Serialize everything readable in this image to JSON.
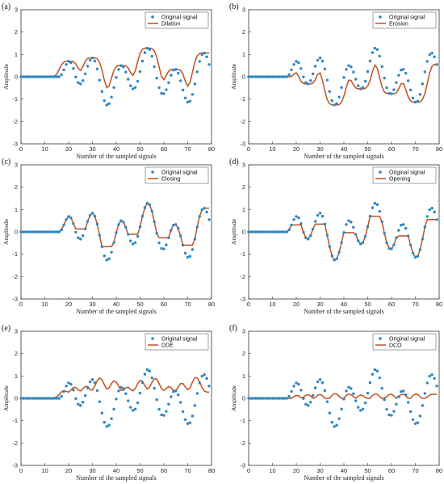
{
  "colors": {
    "original": "#2E86C1",
    "processed": "#C0501E",
    "axis": "#333333"
  },
  "chart_data": [
    {
      "type": "line",
      "panel_label": "(a)",
      "xlabel": "Number of the sampled signals",
      "ylabel": "Amplitude",
      "xlim": [
        0,
        80
      ],
      "ylim": [
        -3,
        3
      ],
      "xticks": [
        0,
        10,
        20,
        30,
        40,
        50,
        60,
        70,
        80
      ],
      "yticks": [
        -3,
        -2,
        -1,
        0,
        1,
        2,
        3
      ],
      "legend": "top-right",
      "series": [
        {
          "name": "Original signal",
          "style": "markers",
          "x": [],
          "values": []
        },
        {
          "name": "Dilation",
          "style": "line",
          "x": [],
          "values": []
        }
      ]
    },
    {
      "type": "line",
      "panel_label": "(b)",
      "xlabel": "Number of the sampled signals",
      "ylabel": "Amplitude",
      "xlim": [
        0,
        80
      ],
      "ylim": [
        -3,
        3
      ],
      "xticks": [
        0,
        10,
        20,
        30,
        40,
        50,
        60,
        70,
        80
      ],
      "yticks": [
        -3,
        -2,
        -1,
        0,
        1,
        2,
        3
      ],
      "legend": "top-right",
      "series": [
        {
          "name": "Original signal",
          "style": "markers",
          "x": [],
          "values": []
        },
        {
          "name": "Erosion",
          "style": "line",
          "x": [],
          "values": []
        }
      ]
    },
    {
      "type": "line",
      "panel_label": "(c)",
      "xlabel": "Number of the sampled signals",
      "ylabel": "Amplitude",
      "xlim": [
        0,
        80
      ],
      "ylim": [
        -3,
        3
      ],
      "xticks": [
        0,
        10,
        20,
        30,
        40,
        50,
        60,
        70,
        80
      ],
      "yticks": [
        -3,
        -2,
        -1,
        0,
        1,
        2,
        3
      ],
      "legend": "top-right",
      "series": [
        {
          "name": "Original signal",
          "style": "markers",
          "x": [],
          "values": []
        },
        {
          "name": "Closing",
          "style": "line",
          "x": [],
          "values": []
        }
      ]
    },
    {
      "type": "line",
      "panel_label": "(d)",
      "xlabel": "Number of the sampled signals",
      "ylabel": "Amplitude",
      "xlim": [
        0,
        80
      ],
      "ylim": [
        -3,
        3
      ],
      "xticks": [
        0,
        10,
        20,
        30,
        40,
        50,
        60,
        70,
        80
      ],
      "yticks": [
        -3,
        -2,
        -1,
        0,
        1,
        2,
        3
      ],
      "legend": "top-right",
      "series": [
        {
          "name": "Original signal",
          "style": "markers",
          "x": [],
          "values": []
        },
        {
          "name": "Opening",
          "style": "line",
          "x": [],
          "values": []
        }
      ]
    },
    {
      "type": "line",
      "panel_label": "(e)",
      "xlabel": "Number of the sampled signals",
      "ylabel": "Amplitude",
      "xlim": [
        0,
        80
      ],
      "ylim": [
        -3,
        3
      ],
      "xticks": [
        0,
        10,
        20,
        30,
        40,
        50,
        60,
        70,
        80
      ],
      "yticks": [
        -3,
        -2,
        -1,
        0,
        1,
        2,
        3
      ],
      "legend": "top-right",
      "series": [
        {
          "name": "Original signal",
          "style": "markers",
          "x": [],
          "values": []
        },
        {
          "name": "DDE",
          "style": "line",
          "x": [],
          "values": []
        }
      ]
    },
    {
      "type": "line",
      "panel_label": "(f)",
      "xlabel": "Number of the sampled signals",
      "ylabel": "Amplitude",
      "xlim": [
        0,
        80
      ],
      "ylim": [
        -3,
        3
      ],
      "xticks": [
        0,
        10,
        20,
        30,
        40,
        50,
        60,
        70,
        80
      ],
      "yticks": [
        -3,
        -2,
        -1,
        0,
        1,
        2,
        3
      ],
      "legend": "top-right",
      "series": [
        {
          "name": "Original signal",
          "style": "markers",
          "x": [],
          "values": []
        },
        {
          "name": "DCO",
          "style": "line",
          "x": [],
          "values": []
        }
      ]
    }
  ]
}
